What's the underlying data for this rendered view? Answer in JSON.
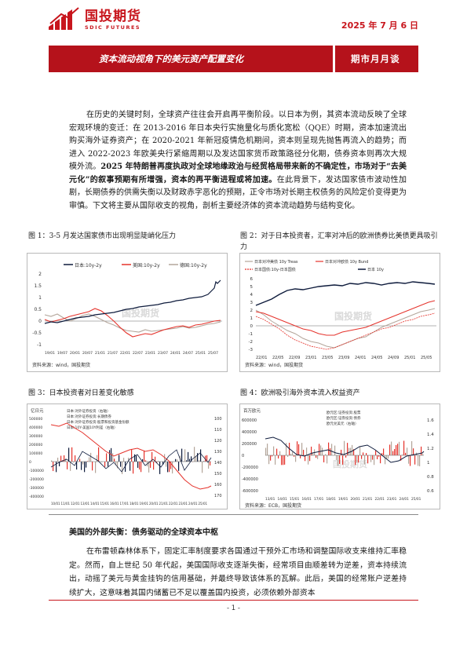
{
  "header": {
    "logo_cn": "国投期货",
    "logo_en": "SDIC FUTURES",
    "date": "2025 年 7 月 6 日"
  },
  "banner": {
    "title": "资本流动视角下的美元资产配置变化",
    "tag": "期市月月谈"
  },
  "intro": {
    "s1": "在历史的关键时刻，全球资产往往会开启再平衡阶段。以日本为例，其资本流动反映了全球宏观环境的变迁：在 2013-2016 年日本央行实施量化与质化宽松（QQE）时期，资本加速流出购买海外证券资产；在 2020-2021 年新冠疫情危机期间，资本则呈现先抛售再流入的趋势；而进入 2022-2023 年欧美央行紧缩周期以及发达国家货币政策路径分化期，债券资本则再次大规模外流。",
    "bold": "2025 年特朗普再度执政对全球地缘政治与经贸格局带来新的不确定性，市场对于“去美元化”的叙事预期有所增强，资本的再平衡进程或将加速。",
    "s2": "在此背景下，发达国家债市波动性加剧，长期债券的供需失衡以及财政赤字恶化的预期，正令市场对长期主权债务的风险定价变得更为审慎。下文将主要从国际收支的视角，剖析主要经济体的资本流动趋势与结构变化。"
  },
  "figures": {
    "fig1": {
      "caption": "图 1：3-5 月发达国家债市出现明显陡峭化压力",
      "legend": [
        "日本:10y-2y",
        "美国:10y-2y",
        "德国:10y-2y"
      ],
      "y_ticks": [
        "2",
        "1.5",
        "1",
        "0.5",
        "0",
        "-0.5",
        "-1"
      ],
      "x_ticks": [
        "19/01",
        "19/07",
        "20/01",
        "20/07",
        "21/01",
        "21/07",
        "22/01",
        "22/07",
        "23/01",
        "23/07",
        "24/01",
        "24/07",
        "25/01",
        "25/07"
      ],
      "watermark": "国投期货",
      "source": "资料来源：wind，国投期货"
    },
    "fig2": {
      "caption": "图 2：对于日本投资者，汇率对冲后的欧洲债券比美债更具吸引力",
      "legend": [
        "日本对冲美债 10y Treas",
        "日本对冲欧债 10y Bund",
        "日本国债:10y-日本国债",
        "日本 10y"
      ],
      "y_ticks": [
        "6",
        "5",
        "4",
        "3",
        "2",
        "1",
        "0",
        "-1",
        "-2",
        "-3"
      ],
      "x_ticks": [
        "22/01",
        "22/05",
        "22/09",
        "23/01",
        "23/05",
        "23/09",
        "24/01",
        "24/05",
        "24/09",
        "25/01",
        "25/05"
      ],
      "watermark": "国投期货",
      "source": "资料来源：wind，国投期货"
    },
    "fig3": {
      "caption": "图 3：日本投资者对日差变化敏感",
      "legend": [
        "日本:对外证券投资（右轴）",
        "日本:对外证券投资:长期债券",
        "日本:对外证券投资:股票和投资基金份额",
        "日本:10Y-美国10Y利差（右轴）"
      ],
      "unit": "亿日元",
      "y_ticks": [
        "500000",
        "400000",
        "300000",
        "200000",
        "100000",
        "0",
        "-100000",
        "-200000",
        "-300000",
        "-400000"
      ],
      "y2_ticks": [
        "100",
        "110",
        "120",
        "130",
        "140",
        "150",
        "160",
        "170"
      ],
      "x_ticks": [
        "10/01",
        "11/01",
        "12/01",
        "13/01",
        "14/01",
        "15/01",
        "16/01",
        "17/01",
        "18/01",
        "19/01",
        "20/01",
        "21/01",
        "22/01",
        "23/01",
        "24/01",
        "25/01"
      ],
      "source": "资料来源：wind，国投期货"
    },
    "fig4": {
      "caption": "图 4：欧洲吸引海外资本流入权益资产",
      "legend": [
        "欧元区:证券投资:股票",
        "欧元区:证券投资:债券",
        "欧元兑美元（右轴）"
      ],
      "unit": "百万欧元",
      "y_ticks": [
        "600000",
        "400000",
        "200000",
        "0",
        "-200000",
        "-400000",
        "-600000"
      ],
      "y2_ticks": [
        "1.6",
        "1.4",
        "1.2",
        "1",
        "0.8",
        "0.6"
      ],
      "x_ticks": [
        "13/01",
        "14/01",
        "15/01",
        "16/01",
        "17/01",
        "18/01",
        "19/01",
        "20/01",
        "21/01",
        "22/01",
        "23/01",
        "24/01",
        "25/01"
      ],
      "watermark": "国投期货",
      "source": "资料来源：ECB，国投期货"
    }
  },
  "section": {
    "heading": "美国的外部失衡：债务驱动的全球资本中枢",
    "para": "在布雷顿森林体系下，固定汇率制度要求各国通过干预外汇市场和调整国际收支来维持汇率稳定。然而，自上世纪 50 年代起，美国国际收支逐渐失衡，经常项目由顺差转为逆差，资本持续流出，动摇了美元与黄金挂钩的信用基础，并最终导致该体系的瓦解。此后，美国的经常账户逆差持续扩大，这意味着其国内储蓄已不足以覆盖国内投资，必须依赖外部资本"
  },
  "footer": {
    "page": "- 1 -"
  },
  "colors": {
    "brand_red": "#b5121b",
    "series_black": "#0e1b3c",
    "series_red": "#e5322b",
    "series_gray": "#b3a59a"
  }
}
